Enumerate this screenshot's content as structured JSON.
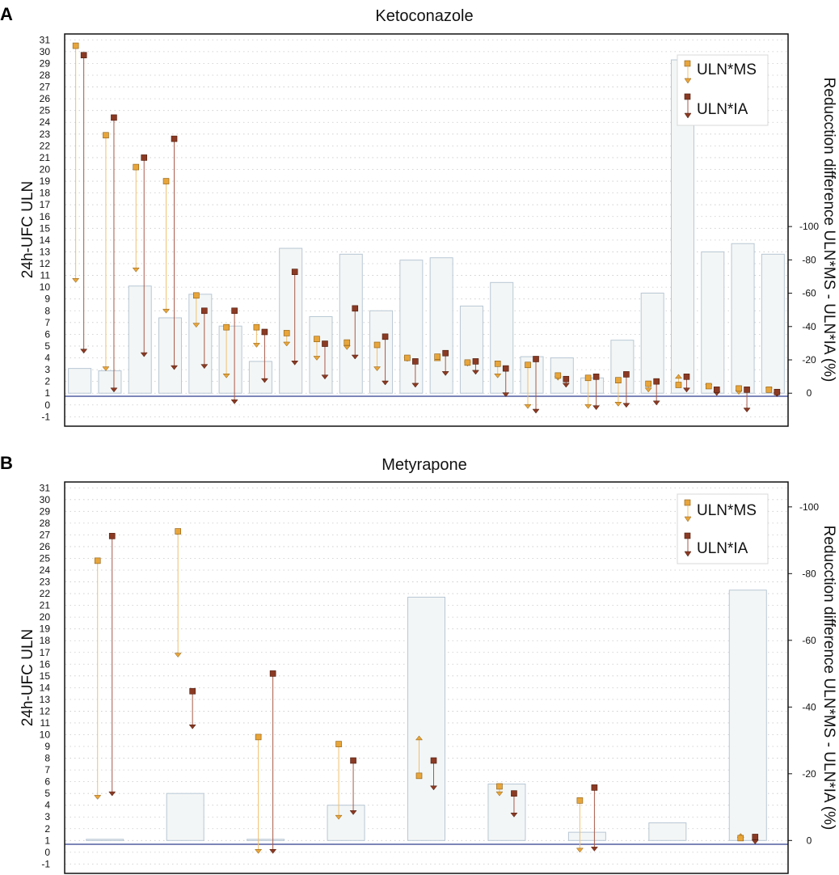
{
  "figure": {
    "title": ""
  },
  "colors": {
    "ms": "#E8A53A",
    "ms_line": "#F0C070",
    "ia": "#8B3A24",
    "ia_line": "#A85A48",
    "bar_fill": "#F3F6F6",
    "bar_stroke": "#B8C7D4",
    "baseline": "#2D3E8C",
    "grid": "#C8C8C8"
  },
  "chart_data": [
    {
      "type": "bar+arrow",
      "panel_label": "A",
      "title": "Ketoconazole",
      "ylabel": "24h-UFC ULN",
      "y2label": "Reducction difference ULN*MS - ULN*IA (%)",
      "ylim": [
        -1.8,
        31.5
      ],
      "yticks": [
        -1,
        0,
        1,
        2,
        3,
        4,
        5,
        6,
        7,
        8,
        9,
        10,
        11,
        12,
        13,
        14,
        15,
        16,
        17,
        18,
        19,
        20,
        21,
        22,
        23,
        24,
        25,
        26,
        27,
        28,
        29,
        30,
        31
      ],
      "y2ticks": [
        -100,
        -80,
        -60,
        -40,
        -20,
        0
      ],
      "y2_zero_at_y": 1,
      "y2_unit_per_y": -0.1415,
      "legend": [
        {
          "key": "ms",
          "label": "ULN*MS"
        },
        {
          "key": "ia",
          "label": "ULN*IA"
        }
      ],
      "bars": [
        3.1,
        2.9,
        10.1,
        7.4,
        9.4,
        6.7,
        3.7,
        13.3,
        7.5,
        12.8,
        8.0,
        12.3,
        12.5,
        8.4,
        10.4,
        4.1,
        4.0,
        2.3,
        5.5,
        9.5,
        29.3,
        13.0,
        13.7,
        12.8
      ],
      "series": [
        {
          "key": "ms",
          "name": "ULN*MS",
          "start": [
            30.5,
            22.9,
            20.2,
            19.0,
            9.3,
            6.6,
            6.6,
            6.1,
            5.6,
            5.3,
            5.1,
            4.0,
            4.1,
            3.6,
            3.5,
            3.4,
            2.5,
            2.3,
            2.1,
            1.8,
            1.7,
            1.6,
            1.4,
            1.3
          ],
          "end": [
            10.4,
            2.9,
            11.3,
            7.8,
            6.6,
            2.3,
            4.9,
            5.0,
            3.8,
            4.7,
            2.9,
            3.7,
            4.1,
            3.3,
            2.3,
            -0.3,
            2.1,
            -0.3,
            -0.1,
            1.1,
            2.6,
            1.4,
            0.9,
            1.1
          ]
        },
        {
          "key": "ia",
          "name": "ULN*IA",
          "start": [
            29.7,
            24.4,
            21.0,
            22.6,
            8.0,
            8.0,
            6.2,
            11.3,
            5.2,
            8.2,
            5.8,
            3.7,
            4.4,
            3.7,
            3.1,
            3.9,
            2.2,
            2.4,
            2.6,
            2.0,
            2.4,
            1.3,
            1.3,
            1.1
          ],
          "end": [
            4.4,
            1.1,
            4.1,
            3.0,
            3.1,
            0.1,
            1.9,
            3.4,
            2.2,
            3.9,
            1.7,
            1.5,
            2.5,
            2.6,
            0.7,
            -0.7,
            1.5,
            -0.4,
            -0.2,
            0.0,
            1.1,
            0.8,
            -0.6,
            0.7
          ]
        }
      ]
    },
    {
      "type": "bar+arrow",
      "panel_label": "B",
      "title": "Metyrapone",
      "ylabel": "24h-UFC ULN",
      "y2label": "Reducction difference ULN*MS - ULN*IA (%)",
      "ylim": [
        -1.8,
        31.5
      ],
      "yticks": [
        -1,
        0,
        1,
        2,
        3,
        4,
        5,
        6,
        7,
        8,
        9,
        10,
        11,
        12,
        13,
        14,
        15,
        16,
        17,
        18,
        19,
        20,
        21,
        22,
        23,
        24,
        25,
        26,
        27,
        28,
        29,
        30,
        31
      ],
      "y2ticks": [
        -100,
        -80,
        -60,
        -40,
        -20,
        0
      ],
      "y2_zero_at_y": 1,
      "y2_unit_per_y": -0.2838,
      "legend": [
        {
          "key": "ms",
          "label": "ULN*MS"
        },
        {
          "key": "ia",
          "label": "ULN*IA"
        }
      ],
      "bars": [
        1.1,
        5.0,
        1.1,
        4.0,
        21.7,
        5.8,
        1.7,
        2.5,
        22.3
      ],
      "series": [
        {
          "key": "ms",
          "name": "ULN*MS",
          "start": [
            24.8,
            27.3,
            9.8,
            9.2,
            6.5,
            5.6,
            4.4,
            null,
            1.2
          ],
          "end": [
            4.5,
            16.6,
            -0.1,
            2.8,
            9.9,
            4.8,
            0.0,
            null,
            1.6
          ]
        },
        {
          "key": "ia",
          "name": "ULN*IA",
          "start": [
            26.9,
            13.7,
            15.2,
            7.8,
            7.8,
            5.0,
            5.5,
            null,
            1.3
          ],
          "end": [
            4.8,
            10.5,
            -0.1,
            3.2,
            5.3,
            3.0,
            0.1,
            null,
            0.7
          ]
        }
      ]
    }
  ]
}
